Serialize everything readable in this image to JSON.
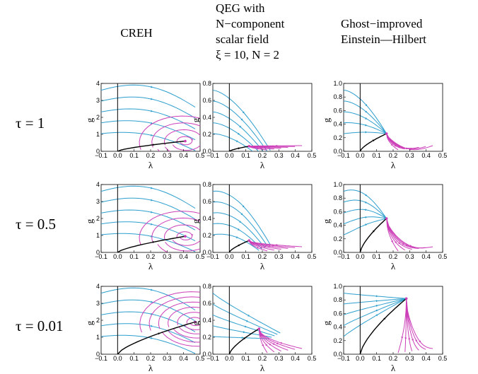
{
  "columns": [
    {
      "lines": [
        "CREH"
      ]
    },
    {
      "lines": [
        "QEG with",
        "N−component",
        "scalar field",
        "ξ = 10, N = 2"
      ]
    },
    {
      "lines": [
        "Ghost−improved",
        "Einstein—Hilbert"
      ]
    }
  ],
  "rows": [
    {
      "label": "τ = 1"
    },
    {
      "label": "τ = 0.5"
    },
    {
      "label": "τ = 0.01"
    }
  ],
  "axes": {
    "xlabel": "λ",
    "ylabel": "g",
    "xticks": [
      "−0.1",
      "0.0",
      "0.1",
      "0.2",
      "0.3",
      "0.4",
      "0.5"
    ],
    "yticks_creh": [
      "0",
      "1",
      "2",
      "3",
      "4"
    ],
    "yticks_qeg": [
      "0.0",
      "0.2",
      "0.4",
      "0.6",
      "0.8"
    ],
    "yticks_ghost": [
      "0.0",
      "0.2",
      "0.4",
      "0.6",
      "0.8",
      "1.0"
    ]
  },
  "chart_data": {
    "type": "streamplot",
    "xlim": [
      -0.1,
      0.5
    ],
    "ylim_by_column": [
      [
        0,
        4
      ],
      [
        0,
        0.8
      ],
      [
        0,
        1.0
      ]
    ],
    "colors": {
      "uv_flow": "#2e9fce",
      "ir_flow": "#cc3fb8",
      "separatrix": "#000000"
    },
    "fixed_points": [
      [
        [
          0.41,
          0.6
        ],
        [
          0.12,
          0.06
        ],
        [
          0.16,
          0.26
        ]
      ],
      [
        [
          0.41,
          0.95
        ],
        [
          0.12,
          0.14
        ],
        [
          0.16,
          0.5
        ]
      ],
      [
        [
          0.47,
          1.9
        ],
        [
          0.18,
          0.3
        ],
        [
          0.28,
          0.82
        ]
      ]
    ]
  }
}
